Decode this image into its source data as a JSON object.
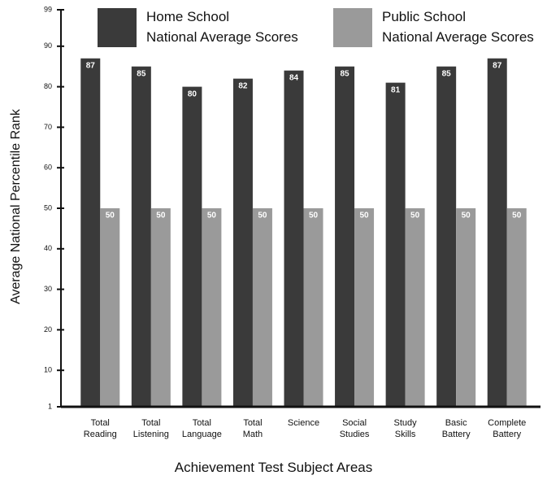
{
  "chart_data": {
    "type": "bar",
    "y_axis_label": "Average National Percentile Rank",
    "x_axis_label": "Achievement Test Subject Areas",
    "categories": [
      "Total\nReading",
      "Total\nListening",
      "Total\nLanguage",
      "Total\nMath",
      "Science",
      "Social\nStudies",
      "Study\nSkills",
      "Basic\nBattery",
      "Complete\nBattery"
    ],
    "series": [
      {
        "name": "Home School\nNational Average Scores",
        "color": "#3a3a3a",
        "values": [
          87,
          85,
          80,
          82,
          84,
          85,
          81,
          85,
          87
        ]
      },
      {
        "name": "Public School\nNational Average Scores",
        "color": "#9a9a9a",
        "values": [
          50,
          50,
          50,
          50,
          50,
          50,
          50,
          50,
          50
        ]
      }
    ],
    "ylim": [
      1,
      99
    ],
    "yticks": [
      1,
      10,
      20,
      30,
      40,
      50,
      60,
      70,
      80,
      90,
      99
    ]
  }
}
